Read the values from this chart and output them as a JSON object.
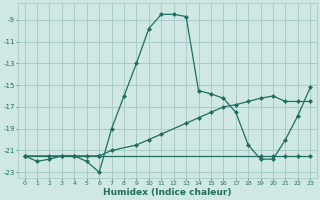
{
  "xlabel": "Humidex (Indice chaleur)",
  "xlim": [
    -0.5,
    23.5
  ],
  "ylim": [
    -23.5,
    -7.5
  ],
  "yticks": [
    -9,
    -11,
    -13,
    -15,
    -17,
    -19,
    -21,
    -23
  ],
  "xticks": [
    0,
    1,
    2,
    3,
    4,
    5,
    6,
    7,
    8,
    9,
    10,
    11,
    12,
    13,
    14,
    15,
    16,
    17,
    18,
    19,
    20,
    21,
    22,
    23
  ],
  "bg_color": "#cfe8e4",
  "grid_color": "#a8ccca",
  "line_color": "#1f6e60",
  "lines": [
    {
      "x": [
        0,
        1,
        2,
        3,
        4,
        5,
        6,
        7,
        8,
        9,
        10,
        11,
        12,
        13,
        14,
        15,
        16,
        17,
        18,
        19,
        20,
        21,
        22,
        23
      ],
      "y": [
        -21.5,
        -22.0,
        -21.8,
        -21.5,
        -21.5,
        -22.0,
        -23.0,
        -19.0,
        -16.0,
        -13.0,
        -9.8,
        -8.5,
        -8.5,
        -8.7,
        -15.5,
        -15.8,
        -16.2,
        -17.5,
        -20.5,
        -21.8,
        -21.8,
        -20.0,
        -17.8,
        -15.2
      ]
    },
    {
      "x": [
        0,
        2,
        3,
        4,
        5,
        6,
        19,
        20,
        21,
        22,
        23
      ],
      "y": [
        -21.5,
        -21.5,
        -21.5,
        -21.5,
        -21.5,
        -21.5,
        -21.5,
        -21.5,
        -21.5,
        -21.5,
        -21.5
      ]
    },
    {
      "x": [
        0,
        6,
        7,
        9,
        10,
        11,
        13,
        14,
        15,
        16,
        17,
        18,
        19,
        20,
        21,
        22,
        23
      ],
      "y": [
        -21.5,
        -21.5,
        -21.0,
        -20.5,
        -20.0,
        -19.5,
        -18.5,
        -18.0,
        -17.5,
        -17.0,
        -16.8,
        -16.5,
        -16.2,
        -16.0,
        -16.5,
        -16.5,
        -16.5
      ]
    }
  ]
}
